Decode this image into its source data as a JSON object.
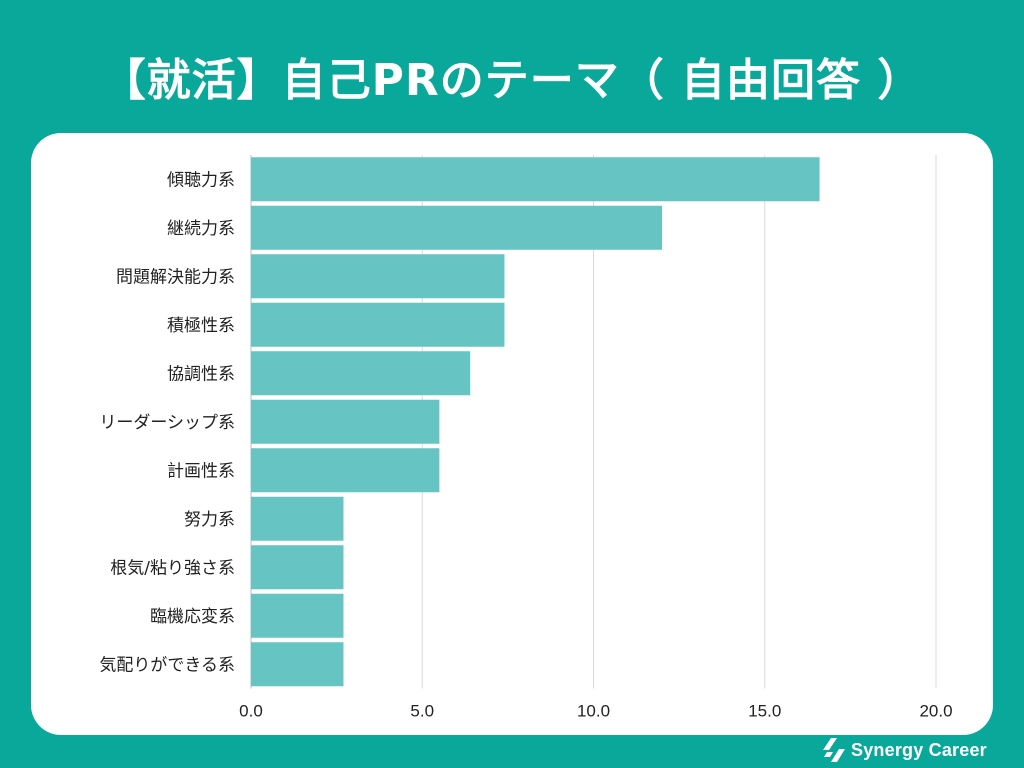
{
  "title": "【就活】自己PRのテーマ（ 自由回答 ）",
  "brand": {
    "name": "Synergy Career",
    "logo_icon": "synergy-leaf-icon"
  },
  "colors": {
    "background": "#0aa79b",
    "bar": "#66c4c2",
    "grid": "#d9d9d9"
  },
  "chart_data": {
    "type": "bar",
    "orientation": "horizontal",
    "categories": [
      "傾聴力系",
      "継続力系",
      "問題解決能力系",
      "積極性系",
      "協調性系",
      "リーダーシップ系",
      "計画性系",
      "努力系",
      "根気/粘り強さ系",
      "臨機応変系",
      "気配りができる系"
    ],
    "values": [
      16.6,
      12.0,
      7.4,
      7.4,
      6.4,
      5.5,
      5.5,
      2.7,
      2.7,
      2.7,
      2.7
    ],
    "xticks": [
      "0.0",
      "5.0",
      "10.0",
      "15.0",
      "20.0"
    ],
    "xlim": [
      0,
      20
    ],
    "grid": true
  }
}
